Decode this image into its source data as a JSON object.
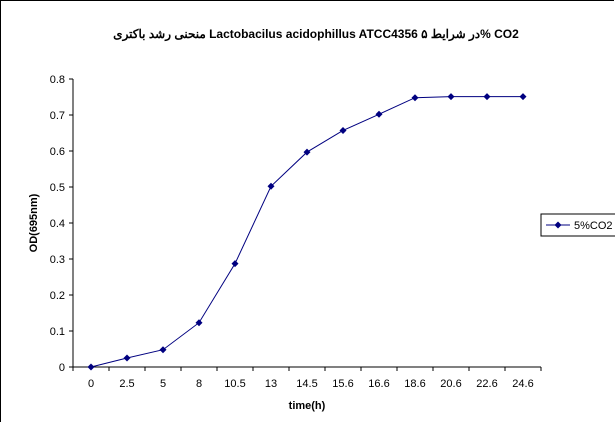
{
  "chart_data": {
    "type": "line",
    "title": "منحنی رشد باکتری Lactobacilus acidophillus ATCC4356 در شرایط ۵% CO2",
    "xlabel": "time(h)",
    "ylabel": "OD(695nm)",
    "categories": [
      "0",
      "2.5",
      "5",
      "8",
      "10.5",
      "13",
      "14.5",
      "15.6",
      "16.6",
      "18.6",
      "20.6",
      "22.6",
      "24.6"
    ],
    "series": [
      {
        "name": "5%CO2",
        "values": [
          0,
          0.025,
          0.048,
          0.123,
          0.287,
          0.502,
          0.597,
          0.657,
          0.702,
          0.748,
          0.751,
          0.751,
          0.751
        ],
        "color": "#000080"
      }
    ],
    "ylim": [
      0,
      0.8
    ],
    "yticks": [
      "0",
      "0.1",
      "0.2",
      "0.3",
      "0.4",
      "0.5",
      "0.6",
      "0.7",
      "0.8"
    ],
    "grid": false,
    "legend": "right"
  }
}
